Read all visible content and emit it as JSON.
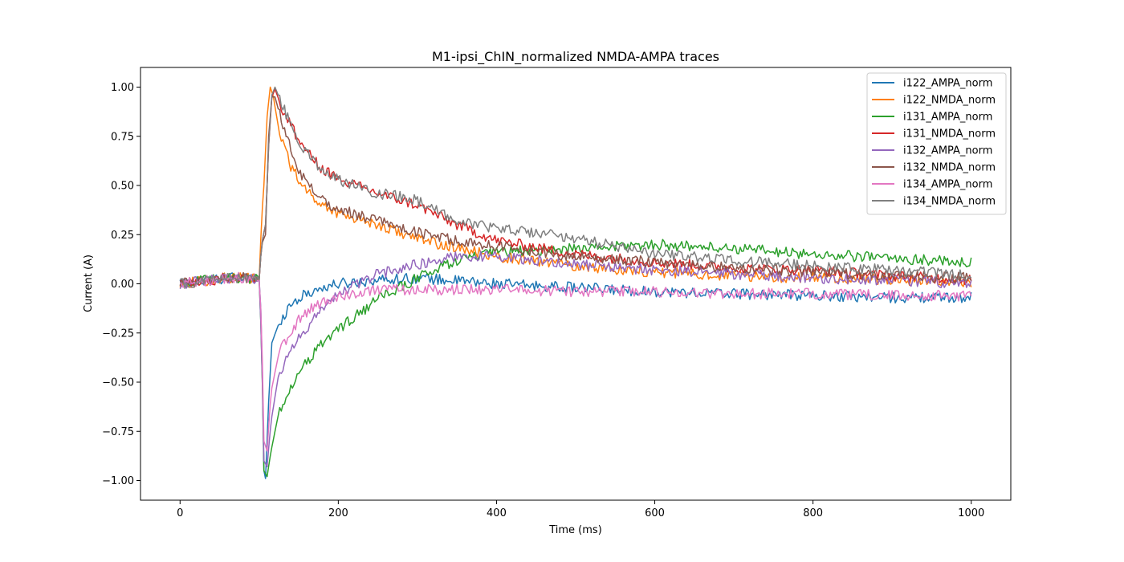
{
  "chart_data": {
    "type": "line",
    "title": "M1-ipsi_ChIN_normalized NMDA-AMPA traces",
    "xlabel": "Time (ms)",
    "ylabel": "Current (A)",
    "xlim": [
      -50,
      1050
    ],
    "ylim": [
      -1.1,
      1.1
    ],
    "xticks": [
      0,
      200,
      400,
      600,
      800,
      1000
    ],
    "xtick_labels": [
      "0",
      "200",
      "400",
      "600",
      "800",
      "1000"
    ],
    "yticks": [
      1.0,
      0.75,
      0.5,
      0.25,
      0.0,
      -0.25,
      -0.5,
      -0.75,
      -1.0
    ],
    "ytick_labels": [
      "1.00",
      "0.75",
      "0.50",
      "0.25",
      "0.00",
      "−0.25",
      "−0.50",
      "−0.75",
      "−1.00"
    ],
    "grid": false,
    "legend_position": "top-right",
    "series": [
      {
        "name": "i122_AMPA_norm",
        "color": "#1f77b4",
        "points": [
          [
            0,
            0.0
          ],
          [
            20,
            0.01
          ],
          [
            40,
            0.02
          ],
          [
            60,
            0.03
          ],
          [
            80,
            0.03
          ],
          [
            100,
            0.02
          ],
          [
            103,
            -0.2
          ],
          [
            106,
            -0.95
          ],
          [
            108,
            -0.99
          ],
          [
            112,
            -0.6
          ],
          [
            116,
            -0.3
          ],
          [
            125,
            -0.2
          ],
          [
            140,
            -0.1
          ],
          [
            160,
            -0.05
          ],
          [
            180,
            -0.02
          ],
          [
            200,
            0.0
          ],
          [
            250,
            0.02
          ],
          [
            300,
            0.03
          ],
          [
            400,
            0.0
          ],
          [
            500,
            -0.02
          ],
          [
            600,
            -0.04
          ],
          [
            700,
            -0.05
          ],
          [
            800,
            -0.06
          ],
          [
            900,
            -0.07
          ],
          [
            1000,
            -0.07
          ]
        ]
      },
      {
        "name": "i122_NMDA_norm",
        "color": "#ff7f0e",
        "points": [
          [
            0,
            0.0
          ],
          [
            20,
            0.01
          ],
          [
            40,
            0.02
          ],
          [
            60,
            0.03
          ],
          [
            80,
            0.03
          ],
          [
            100,
            0.02
          ],
          [
            103,
            0.33
          ],
          [
            106,
            0.5
          ],
          [
            110,
            0.85
          ],
          [
            114,
            1.0
          ],
          [
            118,
            0.95
          ],
          [
            125,
            0.78
          ],
          [
            140,
            0.6
          ],
          [
            160,
            0.47
          ],
          [
            180,
            0.4
          ],
          [
            200,
            0.36
          ],
          [
            250,
            0.3
          ],
          [
            300,
            0.23
          ],
          [
            350,
            0.18
          ],
          [
            400,
            0.14
          ],
          [
            500,
            0.09
          ],
          [
            600,
            0.06
          ],
          [
            700,
            0.04
          ],
          [
            800,
            0.03
          ],
          [
            900,
            0.02
          ],
          [
            1000,
            0.01
          ]
        ]
      },
      {
        "name": "i131_AMPA_norm",
        "color": "#2ca02c",
        "points": [
          [
            0,
            0.0
          ],
          [
            20,
            0.01
          ],
          [
            40,
            0.02
          ],
          [
            60,
            0.03
          ],
          [
            80,
            0.03
          ],
          [
            100,
            0.02
          ],
          [
            103,
            -0.3
          ],
          [
            106,
            -0.95
          ],
          [
            110,
            -0.98
          ],
          [
            115,
            -0.85
          ],
          [
            125,
            -0.65
          ],
          [
            140,
            -0.52
          ],
          [
            160,
            -0.4
          ],
          [
            180,
            -0.3
          ],
          [
            200,
            -0.23
          ],
          [
            250,
            -0.08
          ],
          [
            300,
            0.03
          ],
          [
            350,
            0.12
          ],
          [
            400,
            0.16
          ],
          [
            500,
            0.18
          ],
          [
            600,
            0.2
          ],
          [
            700,
            0.18
          ],
          [
            800,
            0.15
          ],
          [
            900,
            0.13
          ],
          [
            1000,
            0.11
          ]
        ]
      },
      {
        "name": "i131_NMDA_norm",
        "color": "#d62728",
        "points": [
          [
            0,
            0.0
          ],
          [
            20,
            0.01
          ],
          [
            40,
            0.02
          ],
          [
            60,
            0.03
          ],
          [
            80,
            0.03
          ],
          [
            100,
            0.02
          ],
          [
            103,
            0.2
          ],
          [
            108,
            0.3
          ],
          [
            112,
            0.7
          ],
          [
            116,
            0.95
          ],
          [
            120,
            0.99
          ],
          [
            130,
            0.88
          ],
          [
            150,
            0.73
          ],
          [
            175,
            0.6
          ],
          [
            200,
            0.53
          ],
          [
            250,
            0.46
          ],
          [
            300,
            0.4
          ],
          [
            350,
            0.3
          ],
          [
            400,
            0.22
          ],
          [
            500,
            0.15
          ],
          [
            600,
            0.11
          ],
          [
            700,
            0.08
          ],
          [
            800,
            0.07
          ],
          [
            900,
            0.04
          ],
          [
            1000,
            0.02
          ]
        ]
      },
      {
        "name": "i132_AMPA_norm",
        "color": "#9467bd",
        "points": [
          [
            0,
            0.0
          ],
          [
            20,
            0.01
          ],
          [
            40,
            0.02
          ],
          [
            60,
            0.03
          ],
          [
            80,
            0.03
          ],
          [
            100,
            0.02
          ],
          [
            103,
            -0.3
          ],
          [
            106,
            -0.9
          ],
          [
            110,
            -0.93
          ],
          [
            115,
            -0.7
          ],
          [
            125,
            -0.45
          ],
          [
            150,
            -0.28
          ],
          [
            175,
            -0.15
          ],
          [
            200,
            -0.05
          ],
          [
            250,
            0.05
          ],
          [
            300,
            0.1
          ],
          [
            350,
            0.14
          ],
          [
            400,
            0.14
          ],
          [
            450,
            0.12
          ],
          [
            500,
            0.1
          ],
          [
            600,
            0.07
          ],
          [
            700,
            0.05
          ],
          [
            800,
            0.03
          ],
          [
            900,
            0.02
          ],
          [
            1000,
            0.0
          ]
        ]
      },
      {
        "name": "i132_NMDA_norm",
        "color": "#8c564b",
        "points": [
          [
            0,
            0.0
          ],
          [
            20,
            0.01
          ],
          [
            40,
            0.02
          ],
          [
            60,
            0.03
          ],
          [
            80,
            0.03
          ],
          [
            100,
            0.02
          ],
          [
            103,
            0.2
          ],
          [
            108,
            0.25
          ],
          [
            112,
            0.75
          ],
          [
            116,
            0.95
          ],
          [
            120,
            0.95
          ],
          [
            130,
            0.8
          ],
          [
            150,
            0.57
          ],
          [
            175,
            0.44
          ],
          [
            200,
            0.38
          ],
          [
            250,
            0.32
          ],
          [
            300,
            0.26
          ],
          [
            350,
            0.22
          ],
          [
            400,
            0.19
          ],
          [
            500,
            0.14
          ],
          [
            600,
            0.11
          ],
          [
            700,
            0.08
          ],
          [
            800,
            0.06
          ],
          [
            900,
            0.04
          ],
          [
            1000,
            0.03
          ]
        ]
      },
      {
        "name": "i134_AMPA_norm",
        "color": "#e377c2",
        "points": [
          [
            0,
            0.0
          ],
          [
            20,
            0.01
          ],
          [
            40,
            0.02
          ],
          [
            60,
            0.03
          ],
          [
            80,
            0.03
          ],
          [
            100,
            0.02
          ],
          [
            103,
            -0.2
          ],
          [
            106,
            -0.8
          ],
          [
            110,
            -0.85
          ],
          [
            115,
            -0.55
          ],
          [
            125,
            -0.35
          ],
          [
            150,
            -0.18
          ],
          [
            175,
            -0.1
          ],
          [
            200,
            -0.06
          ],
          [
            250,
            -0.03
          ],
          [
            300,
            -0.03
          ],
          [
            400,
            -0.03
          ],
          [
            500,
            -0.04
          ],
          [
            600,
            -0.04
          ],
          [
            700,
            -0.05
          ],
          [
            800,
            -0.05
          ],
          [
            900,
            -0.06
          ],
          [
            1000,
            -0.06
          ]
        ]
      },
      {
        "name": "i134_NMDA_norm",
        "color": "#7f7f7f",
        "points": [
          [
            0,
            0.0
          ],
          [
            20,
            0.01
          ],
          [
            40,
            0.02
          ],
          [
            60,
            0.03
          ],
          [
            80,
            0.03
          ],
          [
            100,
            0.02
          ],
          [
            103,
            0.2
          ],
          [
            108,
            0.3
          ],
          [
            112,
            0.7
          ],
          [
            116,
            0.96
          ],
          [
            120,
            1.0
          ],
          [
            130,
            0.9
          ],
          [
            150,
            0.72
          ],
          [
            175,
            0.6
          ],
          [
            200,
            0.53
          ],
          [
            250,
            0.46
          ],
          [
            290,
            0.44
          ],
          [
            300,
            0.42
          ],
          [
            350,
            0.32
          ],
          [
            400,
            0.28
          ],
          [
            450,
            0.26
          ],
          [
            500,
            0.23
          ],
          [
            600,
            0.15
          ],
          [
            700,
            0.12
          ],
          [
            800,
            0.09
          ],
          [
            900,
            0.07
          ],
          [
            1000,
            0.04
          ]
        ]
      }
    ]
  }
}
